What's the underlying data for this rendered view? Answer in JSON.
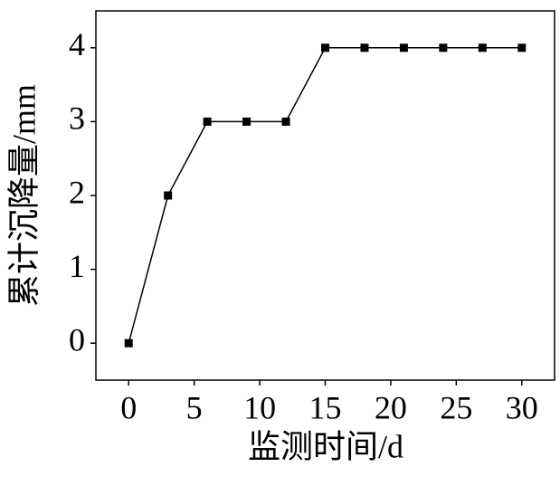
{
  "chart_data": {
    "type": "line",
    "x_label": "监测时间/d",
    "y_label": "累计沉降量/mm",
    "series": [
      {
        "name": "累计沉降量",
        "color": "#000000",
        "x": [
          0,
          3,
          6,
          9,
          12,
          15,
          18,
          21,
          24,
          27,
          30
        ],
        "values": [
          0,
          2,
          3,
          3,
          3,
          4,
          4,
          4,
          4,
          4,
          4
        ]
      }
    ],
    "xlim": [
      -2.5,
      32.5
    ],
    "xticks": [
      0,
      5,
      10,
      15,
      20,
      25,
      30
    ],
    "ylim": [
      -0.5,
      4.5
    ],
    "yticks": [
      0,
      1,
      2,
      3,
      4
    ],
    "marker": "square"
  }
}
